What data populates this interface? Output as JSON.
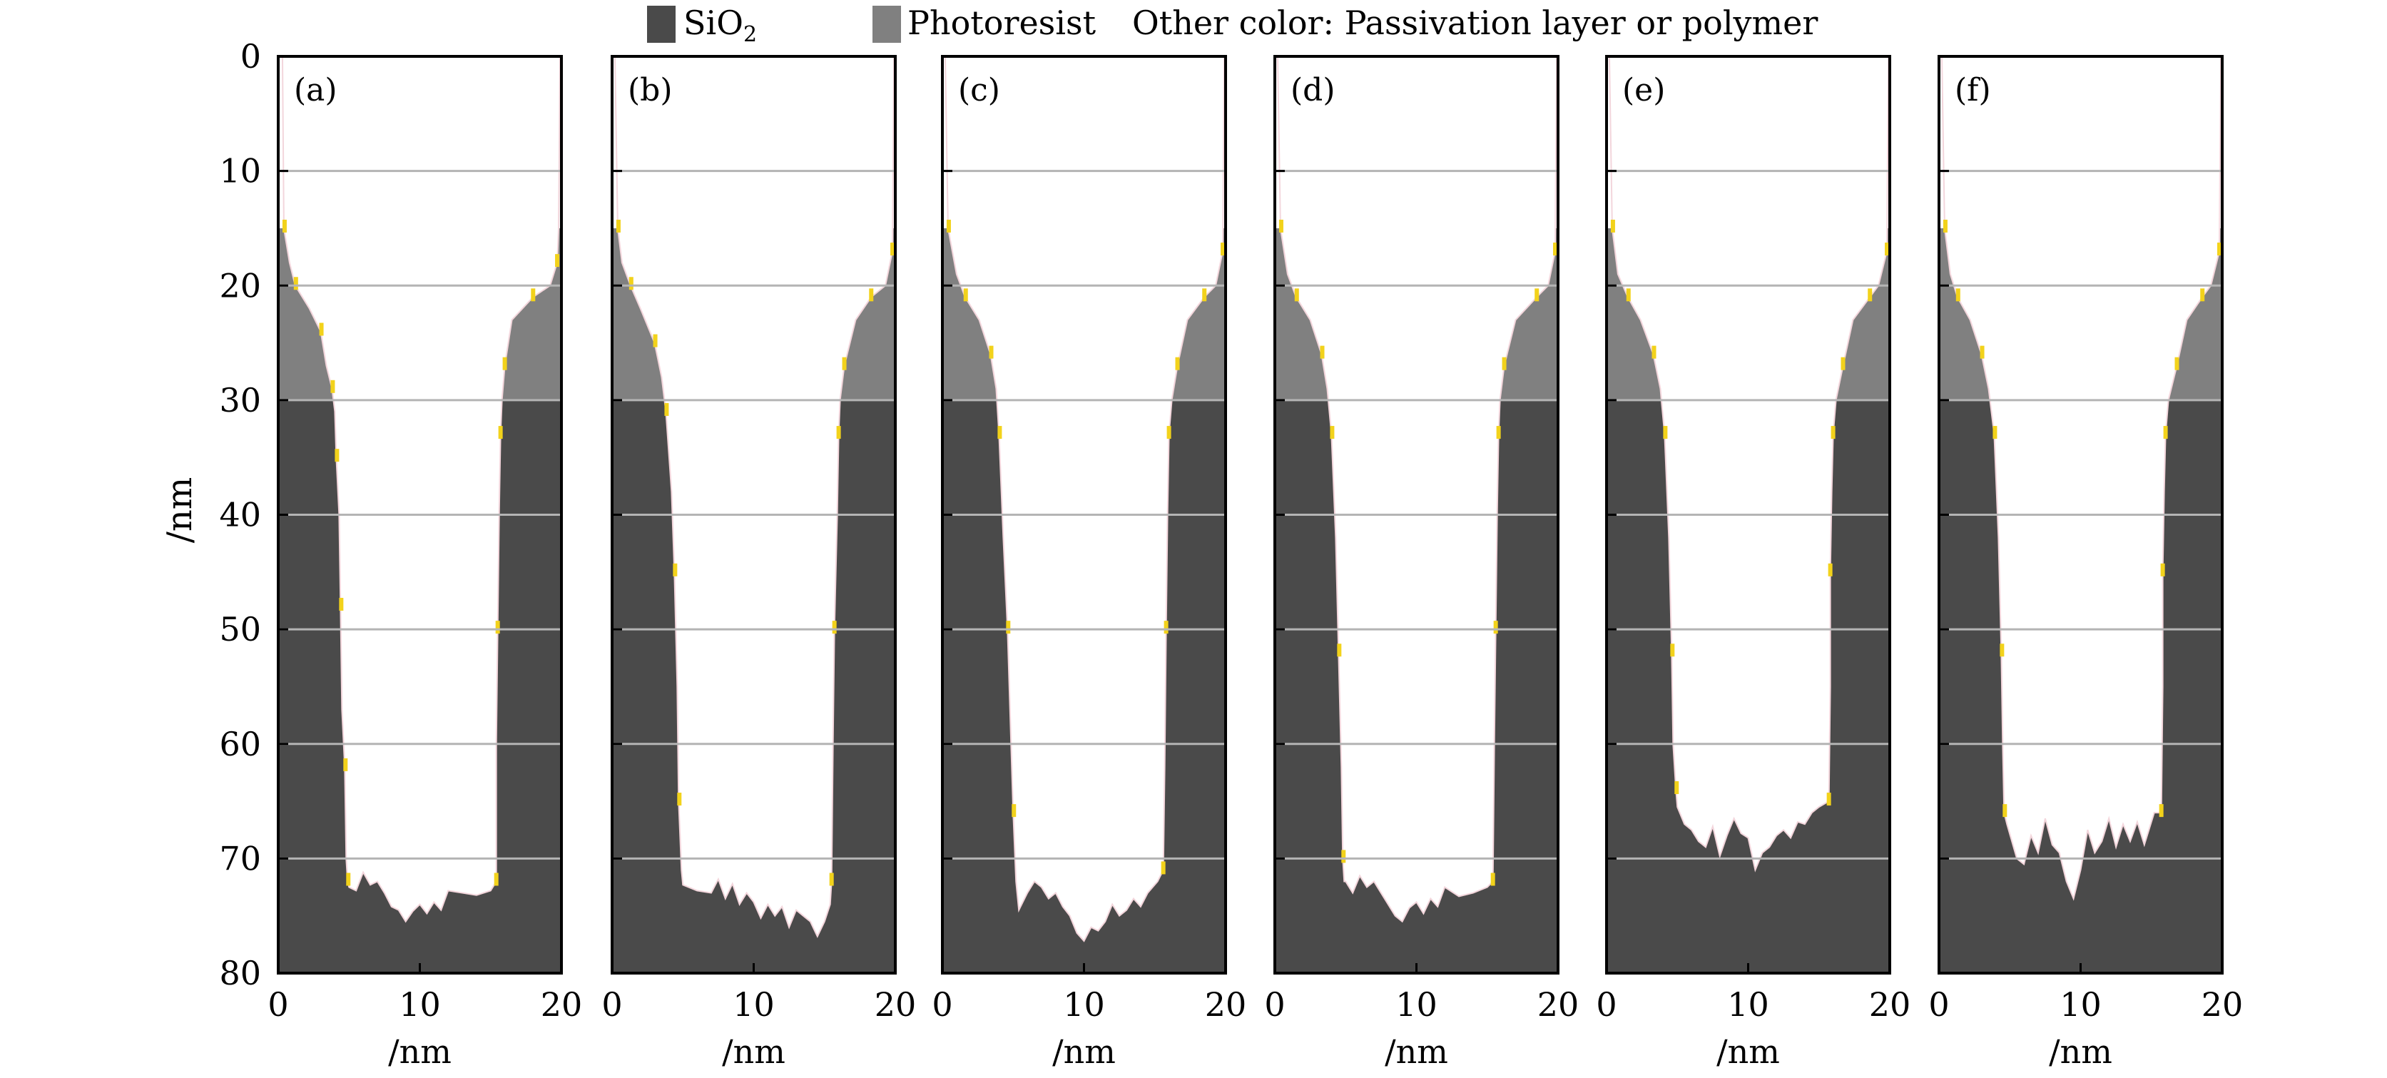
{
  "legend": {
    "items": [
      {
        "label": "SiO",
        "sub": "2",
        "color": "#4a4a4a"
      },
      {
        "label": "Photoresist",
        "color": "#808080"
      }
    ],
    "note": "Other color: Passivation layer or polymer"
  },
  "colors": {
    "sio2": "#4a4a4a",
    "photoresist": "#808080",
    "passivation": "#f2d21b",
    "grid": "#b4b4b4"
  },
  "chart_data": {
    "type": "area",
    "ylabel": "/nm",
    "xlabel": "/nm",
    "xlim": [
      0,
      20
    ],
    "ylim": [
      0,
      80
    ],
    "y_inverted": true,
    "x_ticks": [
      "0",
      "10",
      "20"
    ],
    "y_ticks": [
      "0",
      "10",
      "20",
      "30",
      "40",
      "50",
      "60",
      "70",
      "80"
    ],
    "grid": "horizontal",
    "photoresist_depth": [
      20,
      30
    ],
    "panels": [
      {
        "label": "(a)",
        "left_wall": [
          [
            0,
            0.3
          ],
          [
            15,
            0.4
          ],
          [
            18,
            0.8
          ],
          [
            20,
            1.2
          ],
          [
            22,
            2.2
          ],
          [
            24,
            3.0
          ],
          [
            27,
            3.4
          ],
          [
            29,
            3.8
          ],
          [
            31,
            4.0
          ],
          [
            35,
            4.1
          ],
          [
            40,
            4.3
          ],
          [
            48,
            4.4
          ],
          [
            57,
            4.5
          ],
          [
            62,
            4.7
          ],
          [
            70,
            4.8
          ],
          [
            72,
            4.9
          ]
        ],
        "bottom": [
          [
            5.0,
            72.5
          ],
          [
            5.5,
            72.8
          ],
          [
            6.0,
            71.2
          ],
          [
            6.5,
            72.3
          ],
          [
            7.0,
            72.0
          ],
          [
            7.5,
            73.0
          ],
          [
            8.0,
            74.2
          ],
          [
            8.5,
            74.5
          ],
          [
            9.0,
            75.5
          ],
          [
            9.5,
            74.6
          ],
          [
            10.0,
            74.0
          ],
          [
            10.5,
            74.8
          ],
          [
            11.0,
            73.8
          ],
          [
            11.5,
            74.5
          ],
          [
            12.0,
            72.8
          ],
          [
            13.0,
            73.0
          ],
          [
            14.0,
            73.2
          ],
          [
            15.0,
            72.8
          ]
        ],
        "right_wall": [
          [
            72,
            15.4
          ],
          [
            60,
            15.4
          ],
          [
            50,
            15.5
          ],
          [
            40,
            15.6
          ],
          [
            33,
            15.7
          ],
          [
            30,
            15.8
          ],
          [
            27,
            16.0
          ],
          [
            23,
            16.5
          ],
          [
            21,
            18.0
          ],
          [
            20,
            19.2
          ],
          [
            18,
            19.7
          ],
          [
            15,
            19.8
          ],
          [
            0,
            19.9
          ]
        ]
      },
      {
        "label": "(b)",
        "left_wall": [
          [
            0,
            0.2
          ],
          [
            15,
            0.4
          ],
          [
            18,
            0.7
          ],
          [
            20,
            1.3
          ],
          [
            22,
            2.0
          ],
          [
            25,
            3.0
          ],
          [
            28,
            3.5
          ],
          [
            31,
            3.8
          ],
          [
            38,
            4.2
          ],
          [
            45,
            4.4
          ],
          [
            55,
            4.6
          ],
          [
            65,
            4.7
          ],
          [
            71,
            4.9
          ]
        ],
        "bottom": [
          [
            5.0,
            72.3
          ],
          [
            6.0,
            72.8
          ],
          [
            7.0,
            73.0
          ],
          [
            7.5,
            71.8
          ],
          [
            8.0,
            73.5
          ],
          [
            8.5,
            72.2
          ],
          [
            9.0,
            74.0
          ],
          [
            9.5,
            73.0
          ],
          [
            10.0,
            73.8
          ],
          [
            10.5,
            75.2
          ],
          [
            11.0,
            74.0
          ],
          [
            11.5,
            75.0
          ],
          [
            12.0,
            74.2
          ],
          [
            12.5,
            76.0
          ],
          [
            13.0,
            74.5
          ],
          [
            13.5,
            75.0
          ],
          [
            14.0,
            75.5
          ],
          [
            14.5,
            76.8
          ],
          [
            15.0,
            75.5
          ],
          [
            15.4,
            74.0
          ]
        ],
        "right_wall": [
          [
            72,
            15.5
          ],
          [
            60,
            15.6
          ],
          [
            50,
            15.7
          ],
          [
            40,
            15.9
          ],
          [
            33,
            16.0
          ],
          [
            30,
            16.1
          ],
          [
            27,
            16.4
          ],
          [
            23,
            17.2
          ],
          [
            21,
            18.3
          ],
          [
            20,
            19.3
          ],
          [
            17,
            19.8
          ],
          [
            0,
            19.9
          ]
        ]
      },
      {
        "label": "(c)",
        "left_wall": [
          [
            0,
            0.2
          ],
          [
            15,
            0.4
          ],
          [
            19,
            1.0
          ],
          [
            21,
            1.6
          ],
          [
            23,
            2.6
          ],
          [
            26,
            3.4
          ],
          [
            29,
            3.8
          ],
          [
            33,
            4.0
          ],
          [
            42,
            4.3
          ],
          [
            50,
            4.6
          ],
          [
            58,
            4.8
          ],
          [
            66,
            5.0
          ],
          [
            72,
            5.2
          ]
        ],
        "bottom": [
          [
            5.4,
            74.5
          ],
          [
            6.0,
            73.0
          ],
          [
            6.5,
            72.0
          ],
          [
            7.0,
            72.5
          ],
          [
            7.5,
            73.5
          ],
          [
            8.0,
            73.0
          ],
          [
            8.5,
            74.2
          ],
          [
            9.0,
            75.0
          ],
          [
            9.5,
            76.5
          ],
          [
            10.0,
            77.2
          ],
          [
            10.5,
            76.0
          ],
          [
            11.0,
            76.3
          ],
          [
            11.5,
            75.5
          ],
          [
            12.0,
            74.0
          ],
          [
            12.5,
            75.0
          ],
          [
            13.0,
            74.5
          ],
          [
            13.5,
            73.5
          ],
          [
            14.0,
            74.2
          ],
          [
            14.5,
            73.0
          ],
          [
            15.2,
            72.0
          ]
        ],
        "right_wall": [
          [
            71,
            15.6
          ],
          [
            62,
            15.7
          ],
          [
            50,
            15.8
          ],
          [
            40,
            15.9
          ],
          [
            33,
            16.0
          ],
          [
            30,
            16.2
          ],
          [
            27,
            16.6
          ],
          [
            23,
            17.3
          ],
          [
            21,
            18.5
          ],
          [
            20,
            19.3
          ],
          [
            17,
            19.8
          ],
          [
            0,
            19.9
          ]
        ]
      },
      {
        "label": "(d)",
        "left_wall": [
          [
            0,
            0.2
          ],
          [
            15,
            0.4
          ],
          [
            19,
            0.9
          ],
          [
            21,
            1.5
          ],
          [
            23,
            2.5
          ],
          [
            26,
            3.3
          ],
          [
            29,
            3.7
          ],
          [
            33,
            4.0
          ],
          [
            42,
            4.3
          ],
          [
            52,
            4.5
          ],
          [
            62,
            4.7
          ],
          [
            70,
            4.8
          ],
          [
            72,
            4.9
          ]
        ],
        "bottom": [
          [
            5.0,
            72.0
          ],
          [
            5.5,
            73.0
          ],
          [
            6.0,
            71.5
          ],
          [
            6.5,
            72.5
          ],
          [
            7.0,
            72.0
          ],
          [
            7.5,
            73.0
          ],
          [
            8.0,
            74.0
          ],
          [
            8.5,
            75.0
          ],
          [
            9.0,
            75.5
          ],
          [
            9.5,
            74.3
          ],
          [
            10.0,
            73.8
          ],
          [
            10.5,
            74.8
          ],
          [
            11.0,
            73.5
          ],
          [
            11.5,
            74.2
          ],
          [
            12.0,
            72.5
          ],
          [
            13.0,
            73.3
          ],
          [
            14.0,
            73.0
          ],
          [
            15.0,
            72.5
          ]
        ],
        "right_wall": [
          [
            72,
            15.4
          ],
          [
            60,
            15.5
          ],
          [
            50,
            15.6
          ],
          [
            40,
            15.7
          ],
          [
            33,
            15.8
          ],
          [
            30,
            15.9
          ],
          [
            27,
            16.2
          ],
          [
            23,
            17.0
          ],
          [
            21,
            18.5
          ],
          [
            20,
            19.3
          ],
          [
            17,
            19.8
          ],
          [
            0,
            19.9
          ]
        ]
      },
      {
        "label": "(e)",
        "left_wall": [
          [
            0,
            0.2
          ],
          [
            15,
            0.4
          ],
          [
            19,
            0.8
          ],
          [
            21,
            1.5
          ],
          [
            23,
            2.4
          ],
          [
            26,
            3.3
          ],
          [
            29,
            3.8
          ],
          [
            33,
            4.1
          ],
          [
            42,
            4.4
          ],
          [
            52,
            4.6
          ],
          [
            60,
            4.7
          ],
          [
            64,
            4.9
          ]
        ],
        "bottom": [
          [
            5.0,
            65.5
          ],
          [
            5.5,
            67.0
          ],
          [
            6.0,
            67.5
          ],
          [
            6.5,
            68.5
          ],
          [
            7.0,
            69.0
          ],
          [
            7.5,
            67.2
          ],
          [
            8.0,
            69.8
          ],
          [
            8.5,
            68.0
          ],
          [
            9.0,
            66.5
          ],
          [
            9.5,
            67.8
          ],
          [
            10.0,
            68.2
          ],
          [
            10.5,
            71.0
          ],
          [
            11.0,
            69.5
          ],
          [
            11.5,
            69.0
          ],
          [
            12.0,
            68.0
          ],
          [
            12.5,
            67.5
          ],
          [
            13.0,
            68.2
          ],
          [
            13.5,
            66.8
          ],
          [
            14.0,
            67.0
          ],
          [
            14.5,
            66.0
          ],
          [
            15.0,
            65.5
          ]
        ],
        "right_wall": [
          [
            65,
            15.7
          ],
          [
            55,
            15.8
          ],
          [
            45,
            15.8
          ],
          [
            38,
            15.9
          ],
          [
            33,
            16.0
          ],
          [
            30,
            16.2
          ],
          [
            27,
            16.7
          ],
          [
            23,
            17.4
          ],
          [
            21,
            18.6
          ],
          [
            20,
            19.2
          ],
          [
            17,
            19.8
          ],
          [
            0,
            19.9
          ]
        ]
      },
      {
        "label": "(f)",
        "left_wall": [
          [
            0,
            0.2
          ],
          [
            15,
            0.4
          ],
          [
            19,
            0.8
          ],
          [
            21,
            1.3
          ],
          [
            23,
            2.2
          ],
          [
            26,
            3.0
          ],
          [
            29,
            3.5
          ],
          [
            33,
            3.9
          ],
          [
            42,
            4.2
          ],
          [
            52,
            4.4
          ],
          [
            60,
            4.5
          ],
          [
            66,
            4.6
          ]
        ],
        "bottom": [
          [
            4.8,
            67.0
          ],
          [
            5.5,
            70.0
          ],
          [
            6.0,
            70.5
          ],
          [
            6.5,
            68.0
          ],
          [
            7.0,
            69.5
          ],
          [
            7.5,
            66.5
          ],
          [
            8.0,
            68.8
          ],
          [
            8.5,
            69.5
          ],
          [
            9.0,
            72.0
          ],
          [
            9.5,
            73.5
          ],
          [
            10.0,
            71.0
          ],
          [
            10.5,
            67.5
          ],
          [
            11.0,
            69.5
          ],
          [
            11.5,
            68.5
          ],
          [
            12.0,
            66.5
          ],
          [
            12.5,
            69.0
          ],
          [
            13.0,
            67.0
          ],
          [
            13.5,
            68.5
          ],
          [
            14.0,
            66.8
          ],
          [
            14.5,
            68.8
          ],
          [
            15.2,
            66.0
          ]
        ],
        "right_wall": [
          [
            66,
            15.7
          ],
          [
            55,
            15.8
          ],
          [
            45,
            15.8
          ],
          [
            38,
            15.9
          ],
          [
            33,
            16.0
          ],
          [
            30,
            16.2
          ],
          [
            27,
            16.8
          ],
          [
            23,
            17.5
          ],
          [
            21,
            18.6
          ],
          [
            20,
            19.2
          ],
          [
            17,
            19.8
          ],
          [
            0,
            19.9
          ]
        ]
      }
    ]
  }
}
